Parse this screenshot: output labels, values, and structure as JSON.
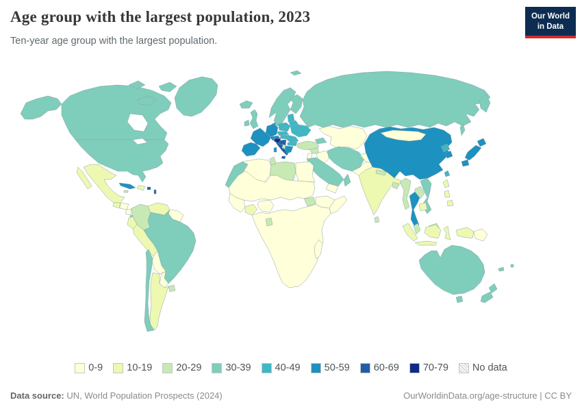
{
  "header": {
    "title": "Age group with the largest population, 2023",
    "subtitle": "Ten-year age group with the largest population."
  },
  "logo": {
    "line1": "Our World",
    "line2": "in Data",
    "bg": "#0d2c51",
    "accent": "#d12b29"
  },
  "legend": {
    "items": [
      {
        "label": "0-9",
        "category": "0-9"
      },
      {
        "label": "10-19",
        "category": "10-19"
      },
      {
        "label": "20-29",
        "category": "20-29"
      },
      {
        "label": "30-39",
        "category": "30-39"
      },
      {
        "label": "40-49",
        "category": "40-49"
      },
      {
        "label": "50-59",
        "category": "50-59"
      },
      {
        "label": "60-69",
        "category": "60-69"
      },
      {
        "label": "70-79",
        "category": "70-79"
      },
      {
        "label": "No data",
        "category": "no-data"
      }
    ],
    "colors": {
      "0-9": "#ffffd9",
      "10-19": "#edf8b1",
      "20-29": "#c7e9b4",
      "30-39": "#7fcdbb",
      "40-49": "#41b6c4",
      "50-59": "#1d91c0",
      "60-69": "#225ea8",
      "70-79": "#0c2c84",
      "no-data": "hatch"
    }
  },
  "map": {
    "ocean": "#ffffff",
    "border_color": "#8fa3ab",
    "regions": [
      {
        "id": "greenland",
        "category": "30-39"
      },
      {
        "id": "alaska",
        "category": "30-39"
      },
      {
        "id": "canada",
        "category": "30-39"
      },
      {
        "id": "arctic-islands",
        "category": "30-39"
      },
      {
        "id": "usa",
        "category": "30-39"
      },
      {
        "id": "mexico",
        "category": "10-19"
      },
      {
        "id": "guatemala",
        "category": "10-19"
      },
      {
        "id": "honduras",
        "category": "0-9"
      },
      {
        "id": "nicaragua",
        "category": "0-9"
      },
      {
        "id": "costa-rica",
        "category": "30-39"
      },
      {
        "id": "panama",
        "category": "20-29"
      },
      {
        "id": "cuba",
        "category": "50-59"
      },
      {
        "id": "hispaniola",
        "category": "10-19"
      },
      {
        "id": "jamaica",
        "category": "20-29"
      },
      {
        "id": "puerto-rico",
        "category": "60-69"
      },
      {
        "id": "lesser-antilles",
        "category": "60-69"
      },
      {
        "id": "colombia",
        "category": "20-29"
      },
      {
        "id": "venezuela",
        "category": "10-19"
      },
      {
        "id": "guyanas",
        "category": "0-9"
      },
      {
        "id": "ecuador",
        "category": "10-19"
      },
      {
        "id": "peru",
        "category": "10-19"
      },
      {
        "id": "brazil",
        "category": "30-39"
      },
      {
        "id": "bolivia",
        "category": "0-9"
      },
      {
        "id": "paraguay",
        "category": "0-9"
      },
      {
        "id": "argentina",
        "category": "10-19"
      },
      {
        "id": "chile",
        "category": "30-39"
      },
      {
        "id": "uruguay",
        "category": "20-29"
      },
      {
        "id": "iceland",
        "category": "30-39"
      },
      {
        "id": "uk",
        "category": "30-39"
      },
      {
        "id": "ireland",
        "category": "30-39"
      },
      {
        "id": "norway-sweden",
        "category": "30-39"
      },
      {
        "id": "finland",
        "category": "30-39"
      },
      {
        "id": "denmark",
        "category": "50-59"
      },
      {
        "id": "germany",
        "category": "50-59"
      },
      {
        "id": "france",
        "category": "50-59"
      },
      {
        "id": "iberia",
        "category": "50-59"
      },
      {
        "id": "switzerland-austria",
        "category": "50-59"
      },
      {
        "id": "italy",
        "category": "60-69"
      },
      {
        "id": "sicily",
        "category": "60-69"
      },
      {
        "id": "sardinia",
        "category": "50-59"
      },
      {
        "id": "poland",
        "category": "40-49"
      },
      {
        "id": "czech-slovakia",
        "category": "40-49"
      },
      {
        "id": "hungary",
        "category": "40-49"
      },
      {
        "id": "baltics",
        "category": "40-49"
      },
      {
        "id": "belarus",
        "category": "40-49"
      },
      {
        "id": "ukraine",
        "category": "40-49"
      },
      {
        "id": "romania",
        "category": "40-49"
      },
      {
        "id": "bulgaria",
        "category": "40-49"
      },
      {
        "id": "serbia-bosnia",
        "category": "60-69"
      },
      {
        "id": "croatia",
        "category": "70-79"
      },
      {
        "id": "albania",
        "category": "20-29"
      },
      {
        "id": "greece",
        "category": "50-59"
      },
      {
        "id": "russia",
        "category": "30-39"
      },
      {
        "id": "kazakhstan-central-asia",
        "category": "0-9"
      },
      {
        "id": "caucasus",
        "category": "30-39"
      },
      {
        "id": "turkey",
        "category": "20-29"
      },
      {
        "id": "syria",
        "category": "20-29"
      },
      {
        "id": "iraq",
        "category": "0-9"
      },
      {
        "id": "israel-jordan",
        "category": "0-9"
      },
      {
        "id": "iran",
        "category": "30-39"
      },
      {
        "id": "saudi-arabia",
        "category": "30-39"
      },
      {
        "id": "yemen",
        "category": "0-9"
      },
      {
        "id": "oman",
        "category": "30-39"
      },
      {
        "id": "afghanistan",
        "category": "0-9"
      },
      {
        "id": "pakistan",
        "category": "0-9"
      },
      {
        "id": "india",
        "category": "10-19"
      },
      {
        "id": "nepal",
        "category": "20-29"
      },
      {
        "id": "bangladesh",
        "category": "20-29"
      },
      {
        "id": "sri-lanka",
        "category": "20-29"
      },
      {
        "id": "china",
        "category": "50-59"
      },
      {
        "id": "mongolia",
        "category": "0-9"
      },
      {
        "id": "north-korea",
        "category": "40-49"
      },
      {
        "id": "south-korea",
        "category": "50-59"
      },
      {
        "id": "japan",
        "category": "50-59"
      },
      {
        "id": "taiwan",
        "category": "40-49"
      },
      {
        "id": "myanmar",
        "category": "20-29"
      },
      {
        "id": "thailand",
        "category": "50-59"
      },
      {
        "id": "laos",
        "category": "20-29"
      },
      {
        "id": "vietnam",
        "category": "30-39"
      },
      {
        "id": "cambodia",
        "category": "10-19"
      },
      {
        "id": "malaysia",
        "category": "20-29"
      },
      {
        "id": "philippines",
        "category": "10-19"
      },
      {
        "id": "indonesia",
        "category": "10-19"
      },
      {
        "id": "papua-new-guinea",
        "category": "0-9"
      },
      {
        "id": "australia",
        "category": "30-39"
      },
      {
        "id": "tasmania",
        "category": "30-39"
      },
      {
        "id": "new-zealand",
        "category": "30-39"
      },
      {
        "id": "new-caledonia",
        "category": "30-39"
      },
      {
        "id": "fiji",
        "category": "30-39"
      },
      {
        "id": "morocco-wsahara",
        "category": "30-39"
      },
      {
        "id": "algeria",
        "category": "0-9"
      },
      {
        "id": "tunisia",
        "category": "20-29"
      },
      {
        "id": "libya",
        "category": "20-29"
      },
      {
        "id": "egypt",
        "category": "0-9"
      },
      {
        "id": "sahel",
        "category": "0-9"
      },
      {
        "id": "west-africa",
        "category": "0-9"
      },
      {
        "id": "ghana-ivory",
        "category": "10-19"
      },
      {
        "id": "nigeria",
        "category": "0-9"
      },
      {
        "id": "south-sudan",
        "category": "20-29"
      },
      {
        "id": "ethiopia",
        "category": "0-9"
      },
      {
        "id": "somalia",
        "category": "0-9"
      },
      {
        "id": "central-southern-africa",
        "category": "0-9"
      },
      {
        "id": "gabon-congo",
        "category": "20-29"
      },
      {
        "id": "madagascar",
        "category": "0-9"
      }
    ]
  },
  "footer": {
    "source_label": "Data source:",
    "source_value": " UN, World Population Prospects (2024)",
    "link": "OurWorldinData.org/age-structure | CC BY"
  }
}
